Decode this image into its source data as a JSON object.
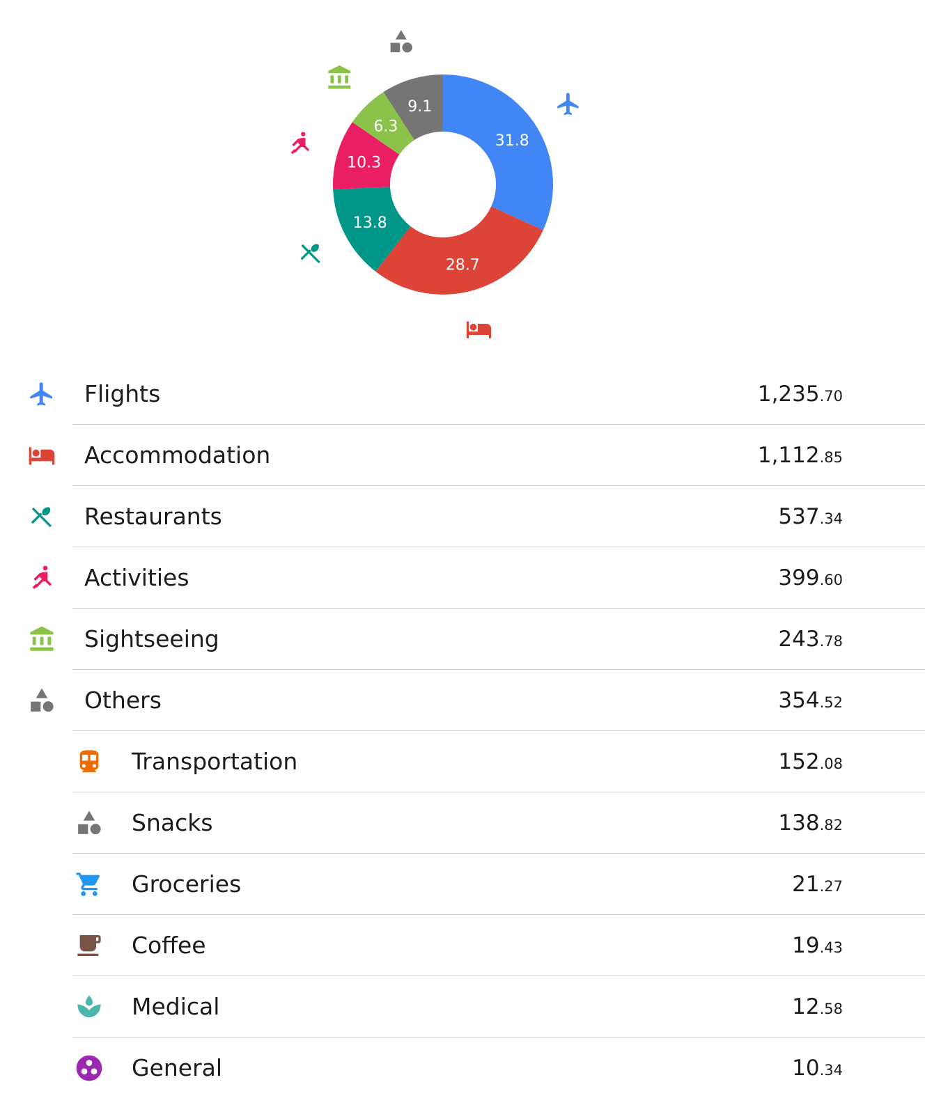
{
  "chart_data": {
    "type": "pie",
    "style": "donut",
    "slices": [
      {
        "label": "31.8",
        "value": 31.8,
        "color": "#4285f4",
        "icon": "airplane-icon"
      },
      {
        "label": "28.7",
        "value": 28.7,
        "color": "#db4437",
        "icon": "bed-icon"
      },
      {
        "label": "13.8",
        "value": 13.8,
        "color": "#009688",
        "icon": "restaurant-icon"
      },
      {
        "label": "10.3",
        "value": 10.3,
        "color": "#e91e63",
        "icon": "activity-icon"
      },
      {
        "label": "6.3",
        "value": 6.3,
        "color": "#8bc34a",
        "icon": "museum-icon"
      },
      {
        "label": "9.1",
        "value": 9.1,
        "color": "#757575",
        "icon": "shapes-icon"
      }
    ]
  },
  "categories": [
    {
      "label": "Flights",
      "whole": "1,235",
      "cents": ".70",
      "icon": "airplane-icon",
      "color": "#4285f4",
      "level": "main"
    },
    {
      "label": "Accommodation",
      "whole": "1,112",
      "cents": ".85",
      "icon": "bed-icon",
      "color": "#db4437",
      "level": "main"
    },
    {
      "label": "Restaurants",
      "whole": "537",
      "cents": ".34",
      "icon": "restaurant-icon",
      "color": "#009688",
      "level": "main"
    },
    {
      "label": "Activities",
      "whole": "399",
      "cents": ".60",
      "icon": "activity-icon",
      "color": "#e91e63",
      "level": "main"
    },
    {
      "label": "Sightseeing",
      "whole": "243",
      "cents": ".78",
      "icon": "museum-icon",
      "color": "#8bc34a",
      "level": "main"
    },
    {
      "label": "Others",
      "whole": "354",
      "cents": ".52",
      "icon": "shapes-icon",
      "color": "#757575",
      "level": "main"
    },
    {
      "label": "Transportation",
      "whole": "152",
      "cents": ".08",
      "icon": "train-icon",
      "color": "#ef6c00",
      "level": "sub"
    },
    {
      "label": "Snacks",
      "whole": "138",
      "cents": ".82",
      "icon": "shapes-icon",
      "color": "#757575",
      "level": "sub"
    },
    {
      "label": "Groceries",
      "whole": "21",
      "cents": ".27",
      "icon": "cart-icon",
      "color": "#2196f3",
      "level": "sub"
    },
    {
      "label": "Coffee",
      "whole": "19",
      "cents": ".43",
      "icon": "coffee-icon",
      "color": "#795548",
      "level": "sub"
    },
    {
      "label": "Medical",
      "whole": "12",
      "cents": ".58",
      "icon": "medical-icon",
      "color": "#4db6ac",
      "level": "sub"
    },
    {
      "label": "General",
      "whole": "10",
      "cents": ".34",
      "icon": "general-icon",
      "color": "#9c27b0",
      "level": "sub"
    }
  ]
}
